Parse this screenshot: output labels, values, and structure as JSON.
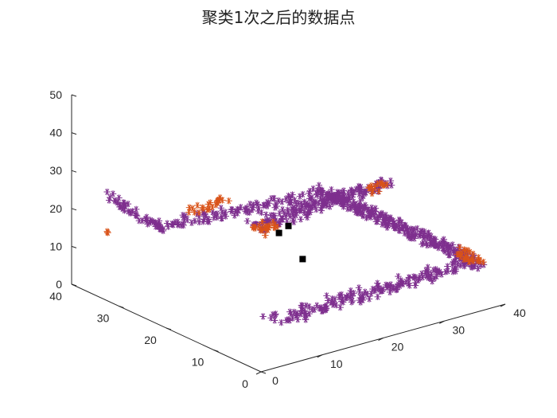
{
  "chart_data": {
    "type": "scatter",
    "title": "聚类1次之后的数据点",
    "xlabel": "",
    "ylabel": "",
    "zlabel": "",
    "x_ticks": [
      "0",
      "10",
      "20",
      "30",
      "40"
    ],
    "y_ticks": [
      "0",
      "10",
      "20",
      "30",
      "40"
    ],
    "z_ticks": [
      "0",
      "10",
      "20",
      "30",
      "40",
      "50"
    ],
    "xlim": [
      0,
      40
    ],
    "ylim": [
      0,
      40
    ],
    "zlim": [
      0,
      50
    ],
    "grid": false,
    "legend": "none",
    "colors": {
      "cluster_a": "#7E2F8E",
      "cluster_b": "#D95319",
      "centers": "#000000",
      "axis": "#262626"
    },
    "series": [
      {
        "marker": "asterisk",
        "color": "#7E2F8E",
        "segments": [
          {
            "from": [
              5,
              2,
              10
            ],
            "to": [
              38,
              3,
              10
            ],
            "steps": 60,
            "spread": 1.2,
            "rows": 3
          },
          {
            "from": [
              38,
              3,
              10
            ],
            "to": [
              38,
              34,
              10
            ],
            "steps": 50,
            "spread": 1.2,
            "rows": 5
          },
          {
            "from": [
              38,
              34,
              10
            ],
            "to": [
              13,
              38,
              10
            ],
            "steps": 40,
            "spread": 1.0,
            "rows": 3
          },
          {
            "from": [
              13,
              38,
              10
            ],
            "to": [
              5,
              38,
              22
            ],
            "steps": 20,
            "spread": 0.8,
            "rows": 2
          },
          {
            "from": [
              2,
              3,
              35
            ],
            "to": [
              22,
              5,
              35
            ],
            "steps": 45,
            "spread": 1.0,
            "rows": 3
          },
          {
            "from": [
              22,
              5,
              35
            ],
            "to": [
              26,
              6,
              35
            ],
            "steps": 8,
            "spread": 0.8,
            "rows": 2
          }
        ]
      },
      {
        "marker": "asterisk",
        "color": "#D95319",
        "segments": [
          {
            "from": [
              2,
              2,
              35
            ],
            "to": [
              4,
              3,
              35
            ],
            "steps": 10,
            "spread": 1.2,
            "rows": 2
          },
          {
            "from": [
              22,
              5,
              35
            ],
            "to": [
              25,
              6,
              35
            ],
            "steps": 6,
            "spread": 0.6,
            "rows": 2
          },
          {
            "from": [
              38,
              3,
              10
            ],
            "to": [
              39,
              7,
              10
            ],
            "steps": 12,
            "spread": 1.0,
            "rows": 2
          },
          {
            "from": [
              20,
              40,
              10
            ],
            "to": [
              24,
              38,
              13
            ],
            "steps": 10,
            "spread": 0.8,
            "rows": 2
          },
          {
            "from": [
              5,
              39,
              12
            ],
            "to": [
              5,
              39,
              12
            ],
            "steps": 2,
            "spread": 0.3,
            "rows": 1
          }
        ]
      },
      {
        "marker": "square",
        "color": "#000000",
        "points": [
          [
            20,
            22,
            15
          ],
          [
            20,
            20,
            18
          ],
          [
            20,
            17,
            11
          ]
        ]
      }
    ]
  }
}
